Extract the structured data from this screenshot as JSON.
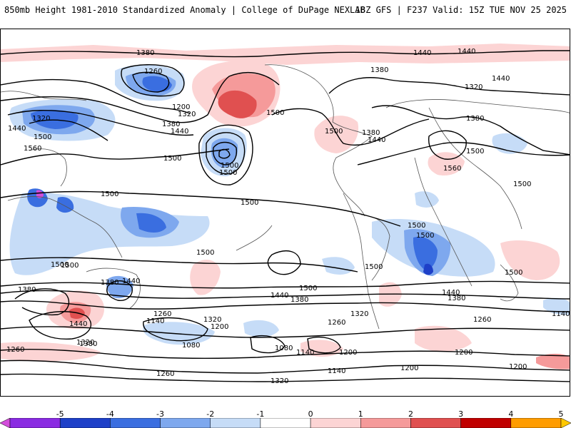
{
  "header": {
    "left_title": "850mb Height 1981-2010 Standardized Anomaly | College of DuPage NEXLAB",
    "right_title": "18Z GFS | F237 Valid: 15Z TUE NOV 25 2025"
  },
  "colorbar": {
    "ticks": [
      "-5",
      "-4",
      "-3",
      "-2",
      "-1",
      "0",
      "1",
      "2",
      "3",
      "4",
      "5"
    ],
    "colors": [
      "#d34ddb",
      "#8a2be2",
      "#1e40c8",
      "#3a6ee0",
      "#7ea8ee",
      "#c6dcf7",
      "#ffffff",
      "#fcd4d4",
      "#f59a9a",
      "#e05050",
      "#c00000",
      "#ff9c00",
      "#ffc800"
    ]
  },
  "map": {
    "contour_labels": [
      "1380",
      "1440",
      "1440",
      "1260",
      "1380",
      "1320",
      "1440",
      "1320",
      "1200",
      "1320",
      "1380",
      "1440",
      "1500",
      "1500",
      "1440",
      "1500",
      "1560",
      "1500",
      "1500",
      "1500",
      "1380",
      "1440",
      "1500",
      "1380",
      "1560",
      "1500",
      "1500",
      "1500",
      "1500",
      "1500",
      "1500",
      "1500",
      "1500",
      "1500",
      "1380",
      "1440",
      "1380",
      "1440",
      "1500",
      "1440",
      "1380",
      "1380",
      "1320",
      "1260",
      "1140",
      "1260",
      "1320",
      "1140",
      "1200",
      "1080",
      "1260",
      "1080",
      "1140",
      "1200",
      "1200",
      "1200",
      "1200",
      "1140",
      "1260",
      "1320",
      "1260",
      "1320",
      "1500",
      "1380",
      "1440"
    ]
  }
}
